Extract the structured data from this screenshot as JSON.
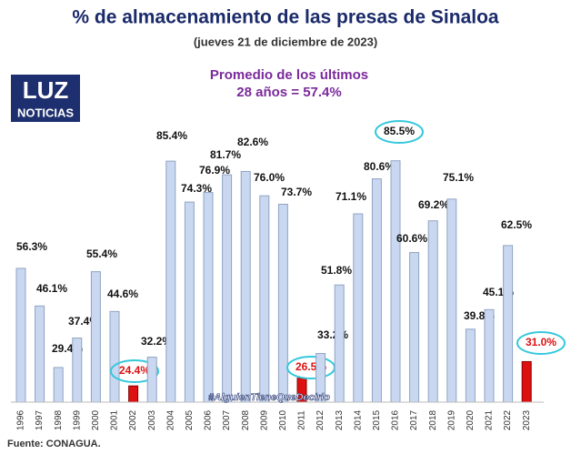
{
  "chart_data": {
    "type": "bar",
    "title": "% de almacenamiento de las presas de Sinaloa",
    "subtitle": "(jueves 21 de diciembre de 2023)",
    "annotation": [
      "Promedio de los últimos",
      "28 años = 57.4%"
    ],
    "logo": [
      "LUZ",
      "NOTICIAS"
    ],
    "hashtag": "#AlguienTieneQueDecirlo",
    "source": "Fuente: CONAGUA.",
    "categories": [
      "1996",
      "1997",
      "1998",
      "1999",
      "2000",
      "2001",
      "2002",
      "2003",
      "2004",
      "2005",
      "2006",
      "2007",
      "2008",
      "2009",
      "2010",
      "2011",
      "2012",
      "2013",
      "2014",
      "2015",
      "2016",
      "2017",
      "2018",
      "2019",
      "2020",
      "2021",
      "2022",
      "2023"
    ],
    "values": [
      56.3,
      46.1,
      29.4,
      37.4,
      55.4,
      44.6,
      24.4,
      32.2,
      85.4,
      74.3,
      76.9,
      81.7,
      82.6,
      76.0,
      73.7,
      26.5,
      33.2,
      51.8,
      71.1,
      80.6,
      85.5,
      60.6,
      69.2,
      75.1,
      39.8,
      45.1,
      62.5,
      31.0
    ],
    "value_labels": [
      "56.3%",
      "46.1%",
      "29.4%",
      "37.4%",
      "55.4%",
      "44.6%",
      "24.4%",
      "32.2%",
      "85.4%",
      "74.3%",
      "76.9%",
      "81.7%",
      "82.6%",
      "76.0%",
      "73.7%",
      "26.5%",
      "33.2%",
      "51.8%",
      "71.1%",
      "80.6%",
      "85.5%",
      "60.6%",
      "69.2%",
      "75.1%",
      "39.8%",
      "45.1%",
      "62.5%",
      "31.0%"
    ],
    "highlighted": [
      false,
      false,
      false,
      false,
      false,
      false,
      true,
      false,
      false,
      false,
      false,
      false,
      false,
      false,
      false,
      true,
      false,
      false,
      false,
      false,
      false,
      false,
      false,
      false,
      false,
      false,
      false,
      true
    ],
    "circled": [
      false,
      false,
      false,
      false,
      false,
      false,
      true,
      false,
      false,
      false,
      false,
      false,
      false,
      false,
      false,
      true,
      false,
      false,
      false,
      false,
      true,
      false,
      false,
      false,
      false,
      false,
      false,
      true
    ],
    "color": "#c9d8f0",
    "highlight_color": "#dd1111",
    "circle_color": "#35c8dc",
    "ylim": [
      20,
      90
    ]
  }
}
